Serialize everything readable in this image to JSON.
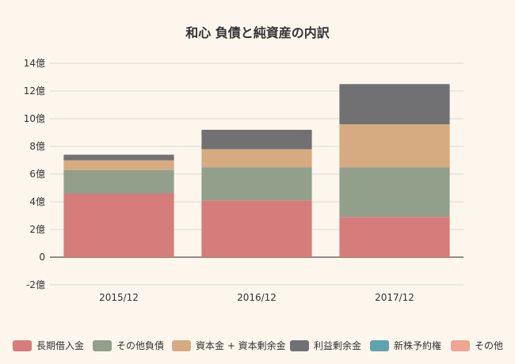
{
  "chart_data": {
    "type": "bar",
    "stacked": true,
    "title": "和心 負債と純資産の内訳",
    "xlabel": "",
    "ylabel": "",
    "categories": [
      "2015/12",
      "2016/12",
      "2017/12"
    ],
    "y_ticks": [
      "-2億",
      "0",
      "2億",
      "4億",
      "6億",
      "8億",
      "10億",
      "12億",
      "14億"
    ],
    "ylim": [
      -2,
      14
    ],
    "grid": true,
    "legend_position": "bottom",
    "series": [
      {
        "name": "長期借入金",
        "color": "#d67c7a",
        "values": [
          4.6,
          4.1,
          2.9
        ]
      },
      {
        "name": "その他負債",
        "color": "#929f8b",
        "values": [
          1.7,
          2.4,
          3.6
        ]
      },
      {
        "name": "資本金 + 資本剰余金",
        "color": "#d6ab81",
        "values": [
          0.7,
          1.3,
          3.1
        ]
      },
      {
        "name": "利益剰余金",
        "color": "#717174",
        "values": [
          0.4,
          1.4,
          2.9
        ]
      },
      {
        "name": "新株予約権",
        "color": "#5fa3ae",
        "values": [
          0,
          0,
          0
        ]
      },
      {
        "name": "その他",
        "color": "#efa591",
        "values": [
          0,
          0,
          0
        ]
      }
    ]
  }
}
